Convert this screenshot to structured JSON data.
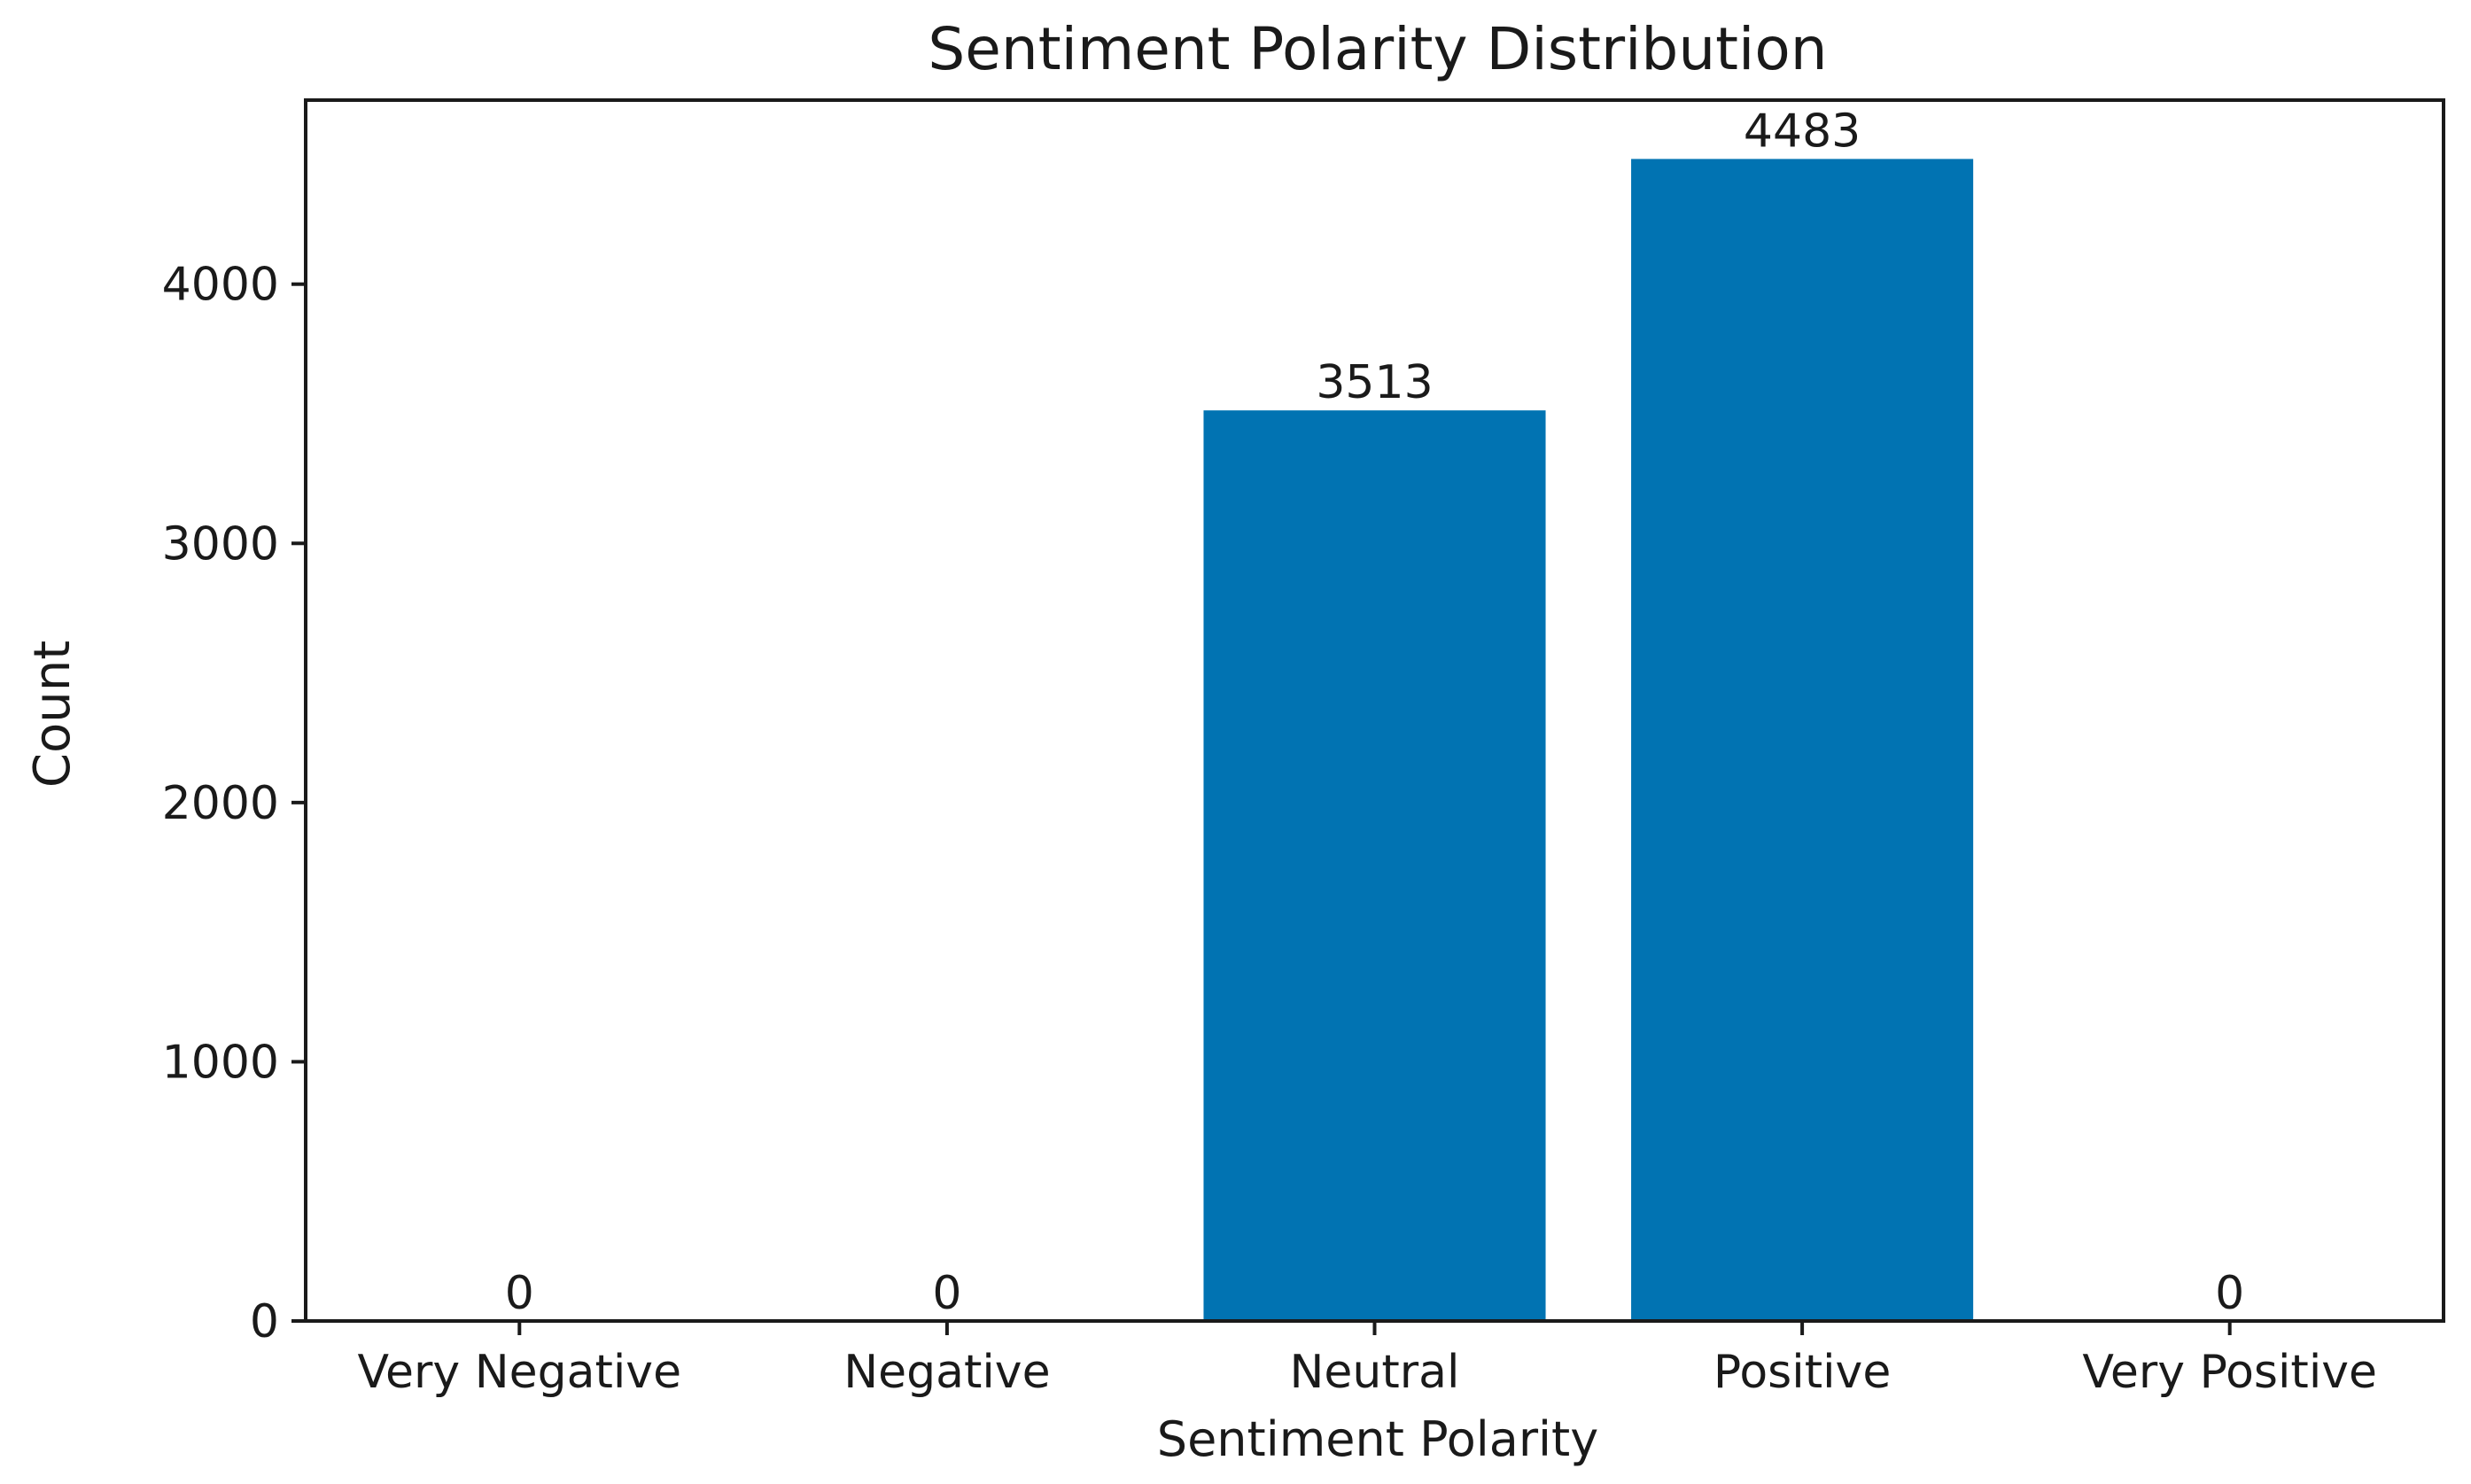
{
  "chart_data": {
    "type": "bar",
    "title": "Sentiment Polarity Distribution",
    "xlabel": "Sentiment Polarity",
    "ylabel": "Count",
    "categories": [
      "Very Negative",
      "Negative",
      "Neutral",
      "Positive",
      "Very Positive"
    ],
    "values": [
      0,
      0,
      3513,
      4483,
      0
    ],
    "data_labels": [
      "0",
      "0",
      "3513",
      "4483",
      "0"
    ],
    "yticks": [
      0,
      1000,
      2000,
      3000,
      4000
    ],
    "ytick_labels": [
      "0",
      "1000",
      "2000",
      "3000",
      "4000"
    ],
    "ylim": [
      0,
      4710
    ],
    "grid": false,
    "bar_color": "#0173b2",
    "frame_color": "#1a1a1a"
  }
}
